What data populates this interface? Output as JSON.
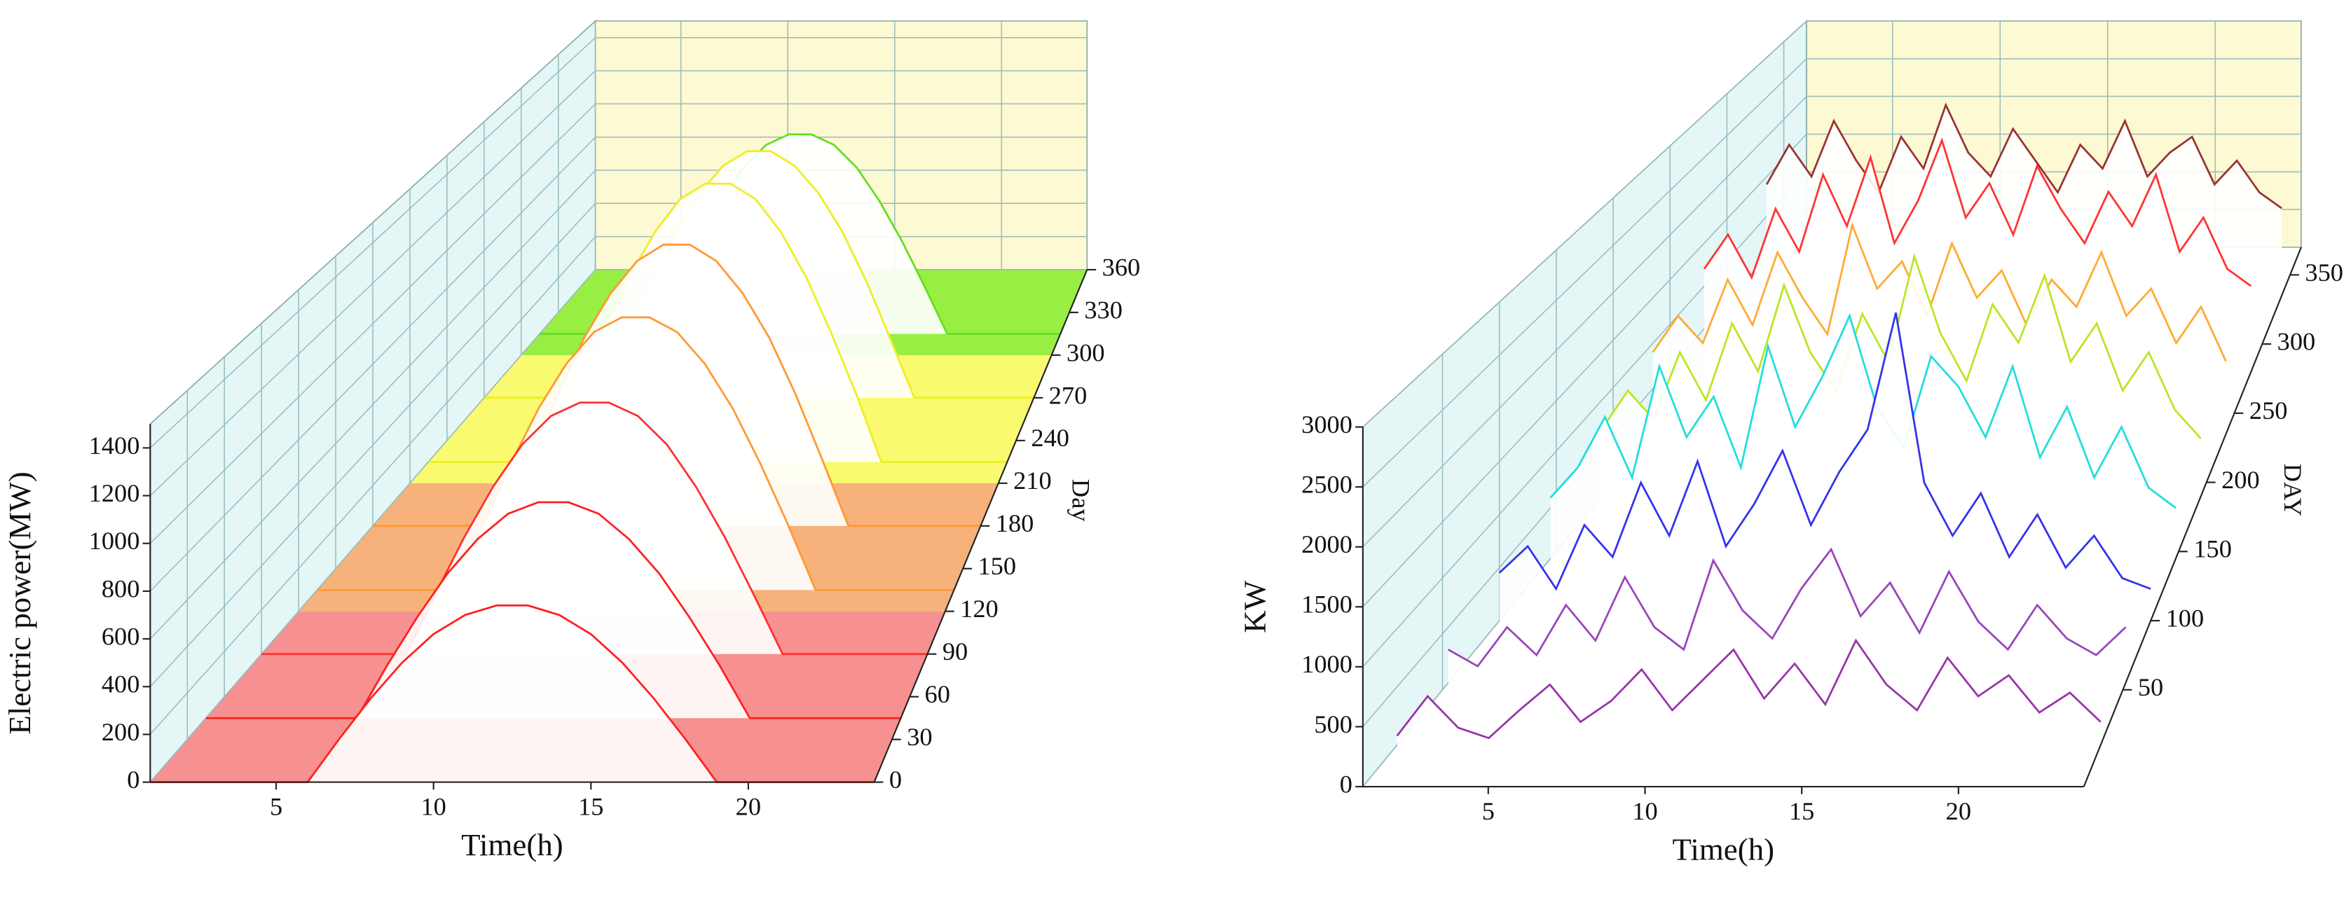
{
  "chart_data": [
    {
      "type": "waterfall",
      "xlabel": "Time(h)",
      "ylabel": "Electric power(MW)",
      "zlabel": "Day",
      "x": [
        1,
        2,
        3,
        4,
        5,
        6,
        7,
        8,
        9,
        10,
        11,
        12,
        13,
        14,
        15,
        16,
        17,
        18,
        19,
        20,
        21,
        22,
        23,
        24
      ],
      "xlim": [
        1,
        24
      ],
      "xticks": [
        5,
        10,
        15,
        20
      ],
      "ylim": [
        0,
        1500
      ],
      "yticks": [
        0,
        200,
        400,
        600,
        800,
        1000,
        1200,
        1400
      ],
      "zlim": [
        0,
        360
      ],
      "zticks": [
        0,
        30,
        60,
        90,
        120,
        150,
        180,
        210,
        240,
        270,
        300,
        330,
        360
      ],
      "floor_bands": [
        {
          "from": 0,
          "to": 120,
          "color": "#f79090"
        },
        {
          "from": 120,
          "to": 210,
          "color": "#f6b27a"
        },
        {
          "from": 210,
          "to": 300,
          "color": "#fafa70"
        },
        {
          "from": 300,
          "to": 360,
          "color": "#99ee44"
        }
      ],
      "series": [
        {
          "day": 0,
          "color": "#ff2020",
          "values": [
            0,
            0,
            0,
            0,
            0,
            0,
            180,
            350,
            500,
            620,
            700,
            740,
            740,
            700,
            620,
            500,
            350,
            180,
            0,
            0,
            0,
            0,
            0,
            0
          ]
        },
        {
          "day": 45,
          "color": "#ff2020",
          "values": [
            0,
            0,
            0,
            0,
            0,
            0,
            230,
            440,
            630,
            780,
            890,
            940,
            940,
            890,
            780,
            630,
            440,
            230,
            0,
            0,
            0,
            0,
            0,
            0
          ]
        },
        {
          "day": 90,
          "color": "#ff3030",
          "values": [
            0,
            0,
            0,
            0,
            0,
            0,
            270,
            530,
            760,
            950,
            1080,
            1140,
            1140,
            1080,
            950,
            760,
            530,
            270,
            0,
            0,
            0,
            0,
            0,
            0
          ]
        },
        {
          "day": 135,
          "color": "#ff9933",
          "values": [
            0,
            0,
            0,
            0,
            0,
            0,
            310,
            600,
            860,
            1070,
            1220,
            1290,
            1290,
            1220,
            1070,
            860,
            600,
            310,
            0,
            0,
            0,
            0,
            0,
            0
          ]
        },
        {
          "day": 180,
          "color": "#ff9933",
          "values": [
            0,
            0,
            0,
            0,
            0,
            0,
            330,
            650,
            930,
            1150,
            1310,
            1390,
            1390,
            1310,
            1150,
            930,
            650,
            330,
            0,
            0,
            0,
            0,
            0,
            0
          ]
        },
        {
          "day": 225,
          "color": "#eeee22",
          "values": [
            0,
            0,
            0,
            0,
            0,
            0,
            350,
            670,
            960,
            1190,
            1360,
            1440,
            1440,
            1360,
            1190,
            960,
            670,
            350,
            0,
            0,
            0,
            0,
            0,
            0
          ]
        },
        {
          "day": 270,
          "color": "#eeee22",
          "values": [
            0,
            0,
            0,
            0,
            0,
            0,
            320,
            630,
            900,
            1110,
            1260,
            1340,
            1340,
            1260,
            1110,
            900,
            630,
            320,
            0,
            0,
            0,
            0,
            0,
            0
          ]
        },
        {
          "day": 315,
          "color": "#66dd22",
          "values": [
            0,
            0,
            0,
            0,
            0,
            0,
            270,
            530,
            760,
            950,
            1080,
            1140,
            1140,
            1080,
            950,
            760,
            530,
            270,
            0,
            0,
            0,
            0,
            0,
            0
          ]
        }
      ]
    },
    {
      "type": "waterfall",
      "xlabel": "Time(h)",
      "ylabel": "KW",
      "zlabel": "DAY",
      "x": [
        1,
        2,
        3,
        4,
        5,
        6,
        7,
        8,
        9,
        10,
        11,
        12,
        13,
        14,
        15,
        16,
        17,
        18,
        19,
        20,
        21,
        22,
        23,
        24
      ],
      "xlim": [
        1,
        24
      ],
      "xticks": [
        5,
        10,
        15,
        20
      ],
      "ylim": [
        0,
        3000
      ],
      "yticks": [
        0,
        500,
        1000,
        1500,
        2000,
        2500,
        3000
      ],
      "zlim": [
        -20,
        370
      ],
      "zticks": [
        50,
        100,
        150,
        200,
        250,
        300,
        350
      ],
      "series": [
        {
          "day": 10,
          "color": "#9933aa",
          "values": [
            80,
            420,
            150,
            60,
            300,
            520,
            200,
            380,
            650,
            300,
            560,
            820,
            400,
            700,
            350,
            900,
            520,
            300,
            750,
            420,
            600,
            280,
            450,
            200
          ]
        },
        {
          "day": 55,
          "color": "#9944bb",
          "values": [
            300,
            150,
            500,
            250,
            700,
            380,
            950,
            500,
            300,
            1100,
            650,
            400,
            850,
            1200,
            600,
            900,
            450,
            1000,
            550,
            300,
            700,
            400,
            250,
            500
          ]
        },
        {
          "day": 100,
          "color": "#3333ee",
          "values": [
            450,
            700,
            300,
            900,
            600,
            1300,
            800,
            1500,
            700,
            1100,
            1600,
            900,
            1400,
            1800,
            2900,
            1300,
            800,
            1200,
            600,
            1000,
            500,
            800,
            400,
            300
          ]
        },
        {
          "day": 145,
          "color": "#22dddd",
          "values": [
            600,
            900,
            1400,
            800,
            1900,
            1200,
            1600,
            900,
            2100,
            1300,
            1800,
            2400,
            1500,
            1100,
            2000,
            1700,
            1200,
            1900,
            1000,
            1500,
            800,
            1300,
            700,
            500
          ]
        },
        {
          "day": 190,
          "color": "#bbe622",
          "values": [
            700,
            1100,
            800,
            1500,
            1000,
            1800,
            1300,
            2200,
            1500,
            1100,
            1900,
            1400,
            2500,
            1700,
            1200,
            2000,
            1600,
            2300,
            1400,
            1800,
            1100,
            1500,
            900,
            600
          ]
        },
        {
          "day": 235,
          "color": "#ffaa33",
          "values": [
            900,
            1300,
            1000,
            1700,
            1200,
            2000,
            1500,
            1100,
            2300,
            1600,
            1900,
            1300,
            2100,
            1500,
            1800,
            1200,
            1700,
            1400,
            2000,
            1300,
            1600,
            1000,
            1400,
            800
          ]
        },
        {
          "day": 280,
          "color": "#ff3333",
          "values": [
            1200,
            1600,
            1100,
            1900,
            1400,
            2300,
            1700,
            2500,
            1500,
            2000,
            2700,
            1800,
            2200,
            1600,
            2400,
            1900,
            1500,
            2100,
            1700,
            2300,
            1400,
            1800,
            1200,
            1000
          ]
        },
        {
          "day": 335,
          "color": "#993333",
          "values": [
            1400,
            1900,
            1500,
            2200,
            1700,
            1300,
            2000,
            1600,
            2400,
            1800,
            1500,
            2100,
            1700,
            1300,
            1900,
            1600,
            2200,
            1500,
            1800,
            2000,
            1400,
            1700,
            1300,
            1100
          ]
        }
      ]
    }
  ]
}
